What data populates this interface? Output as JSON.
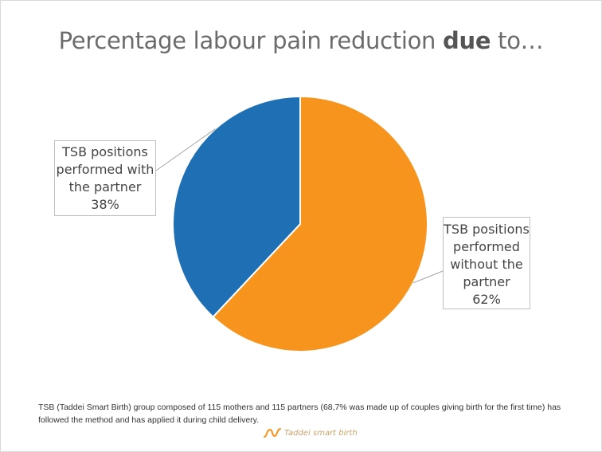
{
  "title": {
    "prefix": "Percentage labour pain reduction ",
    "bold": "due",
    "suffix": " to…"
  },
  "chart_data": {
    "type": "pie",
    "title": "Percentage labour pain reduction due to…",
    "slices": [
      {
        "label_lines": [
          "TSB positions",
          "performed",
          "without the",
          "partner"
        ],
        "value_label": "62%",
        "value": 62,
        "color": "#f7941d"
      },
      {
        "label_lines": [
          "TSB positions",
          "performed with",
          "the partner"
        ],
        "value_label": "38%",
        "value": 38,
        "color": "#1f6fb5"
      }
    ],
    "legend": "none",
    "data_labels": "callouts"
  },
  "footnote": "TSB (Taddei Smart Birth) group composed of 115 mothers and 115 partners (68,7% was made up of couples giving birth for the first time) has followed the method and has applied it during child delivery.",
  "brand": {
    "text": "Taddei smart birth",
    "icon": "taddei-logo-icon",
    "color": "#f7941d"
  }
}
